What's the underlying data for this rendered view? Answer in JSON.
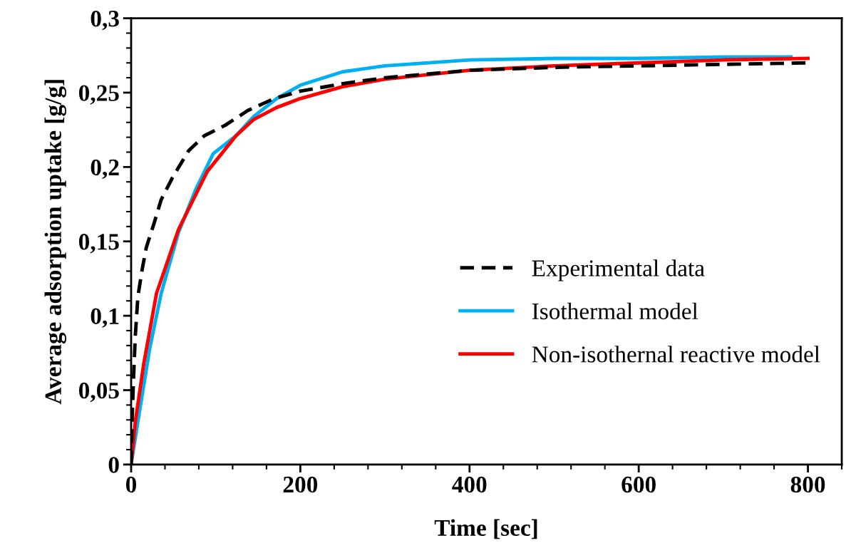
{
  "chart_data": {
    "type": "line",
    "xlabel": "Time [sec]",
    "ylabel": "Average adsorption uptake [g/g]",
    "xlim": [
      0,
      840
    ],
    "xticks": [
      0,
      200,
      400,
      600,
      800
    ],
    "ylim": [
      0,
      0.3
    ],
    "yticks": [
      {
        "value": 0,
        "label": "0"
      },
      {
        "value": 0.05,
        "label": "0,05"
      },
      {
        "value": 0.1,
        "label": "0,1"
      },
      {
        "value": 0.15,
        "label": "0,15"
      },
      {
        "value": 0.2,
        "label": "0,2"
      },
      {
        "value": 0.25,
        "label": "0,25"
      },
      {
        "value": 0.3,
        "label": "0,3"
      }
    ],
    "grid": false,
    "legend": "bottom right",
    "marker": "none",
    "series": [
      {
        "name": "Experimental data",
        "color": "#000000",
        "line_style": "dashed",
        "x": [
          0,
          1.3,
          3,
          5,
          8,
          13,
          18,
          27,
          35.5,
          49,
          68,
          86.5,
          111,
          138,
          169,
          200,
          250,
          300,
          400,
          500,
          600,
          700,
          800
        ],
        "values": [
          0,
          0.033,
          0.06,
          0.087,
          0.113,
          0.131,
          0.146,
          0.162,
          0.178,
          0.193,
          0.211,
          0.221,
          0.228,
          0.238,
          0.246,
          0.251,
          0.256,
          0.26,
          0.265,
          0.267,
          0.268,
          0.269,
          0.27
        ]
      },
      {
        "name": "Isothermal model",
        "color": "#00b0f0",
        "line_style": "solid",
        "x": [
          0,
          8,
          22,
          35.5,
          56,
          76.5,
          97,
          124,
          145,
          172,
          200,
          250,
          300,
          400,
          500,
          600,
          700,
          780
        ],
        "values": [
          0,
          0.029,
          0.078,
          0.115,
          0.156,
          0.185,
          0.209,
          0.221,
          0.234,
          0.246,
          0.255,
          0.264,
          0.268,
          0.272,
          0.273,
          0.273,
          0.274,
          0.274
        ]
      },
      {
        "name": "Non-isothernal reactive model",
        "color": "#ff0000",
        "line_style": "solid",
        "x": [
          0,
          5,
          15,
          30,
          56,
          90,
          124,
          145,
          172,
          200,
          250,
          300,
          400,
          500,
          600,
          700,
          800
        ],
        "values": [
          0,
          0.029,
          0.068,
          0.115,
          0.158,
          0.197,
          0.221,
          0.232,
          0.24,
          0.246,
          0.254,
          0.259,
          0.265,
          0.268,
          0.27,
          0.272,
          0.273
        ]
      }
    ]
  }
}
